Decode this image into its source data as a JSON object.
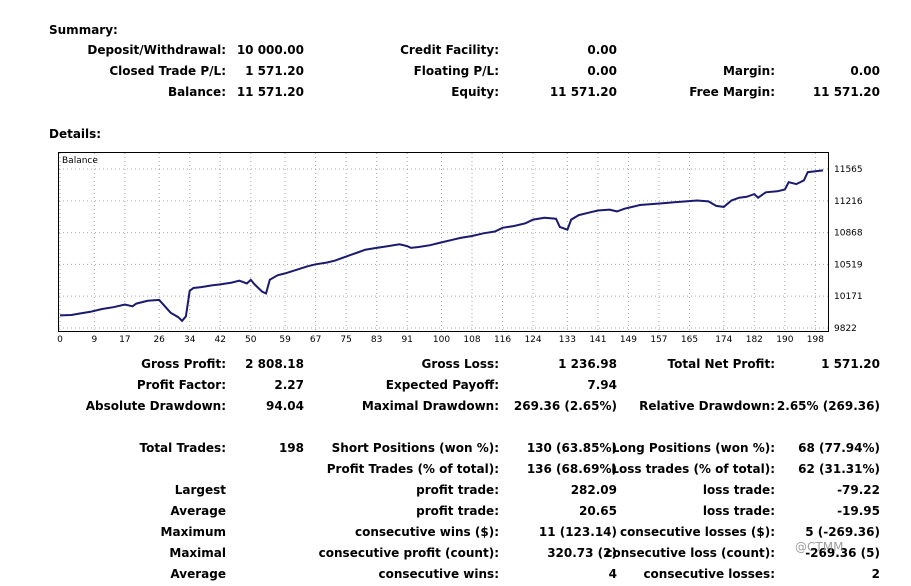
{
  "summary": {
    "title": "Summary:",
    "rows": [
      [
        {
          "label": "Deposit/Withdrawal:",
          "value": "10 000.00"
        },
        {
          "label": "Credit Facility:",
          "value": "0.00"
        },
        {
          "label": "",
          "value": ""
        }
      ],
      [
        {
          "label": "Closed Trade P/L:",
          "value": "1 571.20"
        },
        {
          "label": "Floating P/L:",
          "value": "0.00"
        },
        {
          "label": "Margin:",
          "value": "0.00"
        }
      ],
      [
        {
          "label": "Balance:",
          "value": "11 571.20"
        },
        {
          "label": "Equity:",
          "value": "11 571.20"
        },
        {
          "label": "Free Margin:",
          "value": "11 571.20"
        }
      ]
    ]
  },
  "details": {
    "title": "Details:"
  },
  "chart_data": {
    "type": "line",
    "title": "Balance",
    "x_ticks": [
      0,
      9,
      17,
      26,
      34,
      42,
      50,
      59,
      67,
      75,
      83,
      91,
      100,
      108,
      116,
      124,
      133,
      141,
      149,
      157,
      165,
      174,
      182,
      190,
      198
    ],
    "y_ticks": [
      11565,
      11216,
      10868,
      10519,
      10171,
      9822
    ],
    "ylim": [
      9822,
      11565
    ],
    "xlim": [
      0,
      200
    ],
    "grid": true,
    "line_color": "#1a1a6e",
    "series": [
      {
        "x": [
          0,
          3,
          5,
          8,
          11,
          14,
          17,
          19,
          20,
          23,
          26,
          29,
          31,
          32,
          33,
          34,
          35,
          37,
          40,
          42,
          45,
          47,
          49,
          50,
          51,
          53,
          54,
          55,
          57,
          59,
          62,
          65,
          67,
          70,
          72,
          74,
          76,
          78,
          80,
          83,
          86,
          89,
          91,
          92,
          94,
          97,
          100,
          103,
          105,
          108,
          111,
          114,
          116,
          119,
          122,
          124,
          127,
          130,
          131,
          133,
          134,
          136,
          139,
          141,
          144,
          146,
          148,
          150,
          152,
          155,
          158,
          161,
          164,
          167,
          170,
          172,
          174,
          176,
          178,
          180,
          182,
          183,
          185,
          188,
          190,
          191,
          193,
          195,
          196,
          198,
          200
        ],
        "y": [
          9960,
          9965,
          9980,
          10000,
          10030,
          10050,
          10080,
          10060,
          10090,
          10120,
          10130,
          9990,
          9940,
          9900,
          9950,
          10230,
          10260,
          10270,
          10290,
          10300,
          10320,
          10340,
          10310,
          10350,
          10300,
          10220,
          10200,
          10350,
          10400,
          10420,
          10460,
          10500,
          10520,
          10540,
          10560,
          10590,
          10620,
          10650,
          10680,
          10700,
          10720,
          10740,
          10720,
          10700,
          10710,
          10730,
          10760,
          10790,
          10810,
          10830,
          10860,
          10880,
          10920,
          10940,
          10970,
          11010,
          11030,
          11020,
          10930,
          10900,
          11010,
          11060,
          11090,
          11110,
          11120,
          11100,
          11130,
          11150,
          11170,
          11180,
          11190,
          11200,
          11210,
          11220,
          11210,
          11160,
          11150,
          11220,
          11250,
          11260,
          11290,
          11250,
          11310,
          11320,
          11340,
          11420,
          11400,
          11440,
          11530,
          11540,
          11550
        ]
      }
    ]
  },
  "stats": {
    "rows": [
      [
        {
          "label": "Gross Profit:",
          "value": "2 808.18"
        },
        {
          "label": "Gross Loss:",
          "value": "1 236.98"
        },
        {
          "label": "Total Net Profit:",
          "value": "1 571.20"
        }
      ],
      [
        {
          "label": "Profit Factor:",
          "value": "2.27"
        },
        {
          "label": "Expected Payoff:",
          "value": "7.94"
        },
        {
          "label": "",
          "value": ""
        }
      ],
      [
        {
          "label": "Absolute Drawdown:",
          "value": "94.04"
        },
        {
          "label": "Maximal Drawdown:",
          "value": "269.36 (2.65%)"
        },
        {
          "label": "Relative Drawdown:",
          "value": "2.65% (269.36)"
        }
      ]
    ]
  },
  "trades": {
    "rows": [
      [
        {
          "label": "Total Trades:",
          "value": "198"
        },
        {
          "label": "Short Positions (won %):",
          "value": "130 (63.85%)"
        },
        {
          "label": "Long Positions (won %):",
          "value": "68 (77.94%)"
        }
      ],
      [
        {
          "label": "",
          "value": ""
        },
        {
          "label": "Profit Trades (% of total):",
          "value": "136 (68.69%)"
        },
        {
          "label": "Loss trades (% of total):",
          "value": "62 (31.31%)"
        }
      ],
      [
        {
          "label": "Largest",
          "value": ""
        },
        {
          "label": "profit trade:",
          "value": "282.09"
        },
        {
          "label": "loss trade:",
          "value": "-79.22"
        }
      ],
      [
        {
          "label": "Average",
          "value": ""
        },
        {
          "label": "profit trade:",
          "value": "20.65"
        },
        {
          "label": "loss trade:",
          "value": "-19.95"
        }
      ],
      [
        {
          "label": "Maximum",
          "value": ""
        },
        {
          "label": "consecutive wins ($):",
          "value": "11 (123.14)"
        },
        {
          "label": "consecutive losses ($):",
          "value": "5 (-269.36)"
        }
      ],
      [
        {
          "label": "Maximal",
          "value": ""
        },
        {
          "label": "consecutive profit (count):",
          "value": "320.73 (2)"
        },
        {
          "label": "consecutive loss (count):",
          "value": "-269.36 (5)"
        }
      ],
      [
        {
          "label": "Average",
          "value": ""
        },
        {
          "label": "consecutive wins:",
          "value": "4"
        },
        {
          "label": "consecutive losses:",
          "value": "2"
        }
      ]
    ]
  },
  "watermark": "@CTMM"
}
